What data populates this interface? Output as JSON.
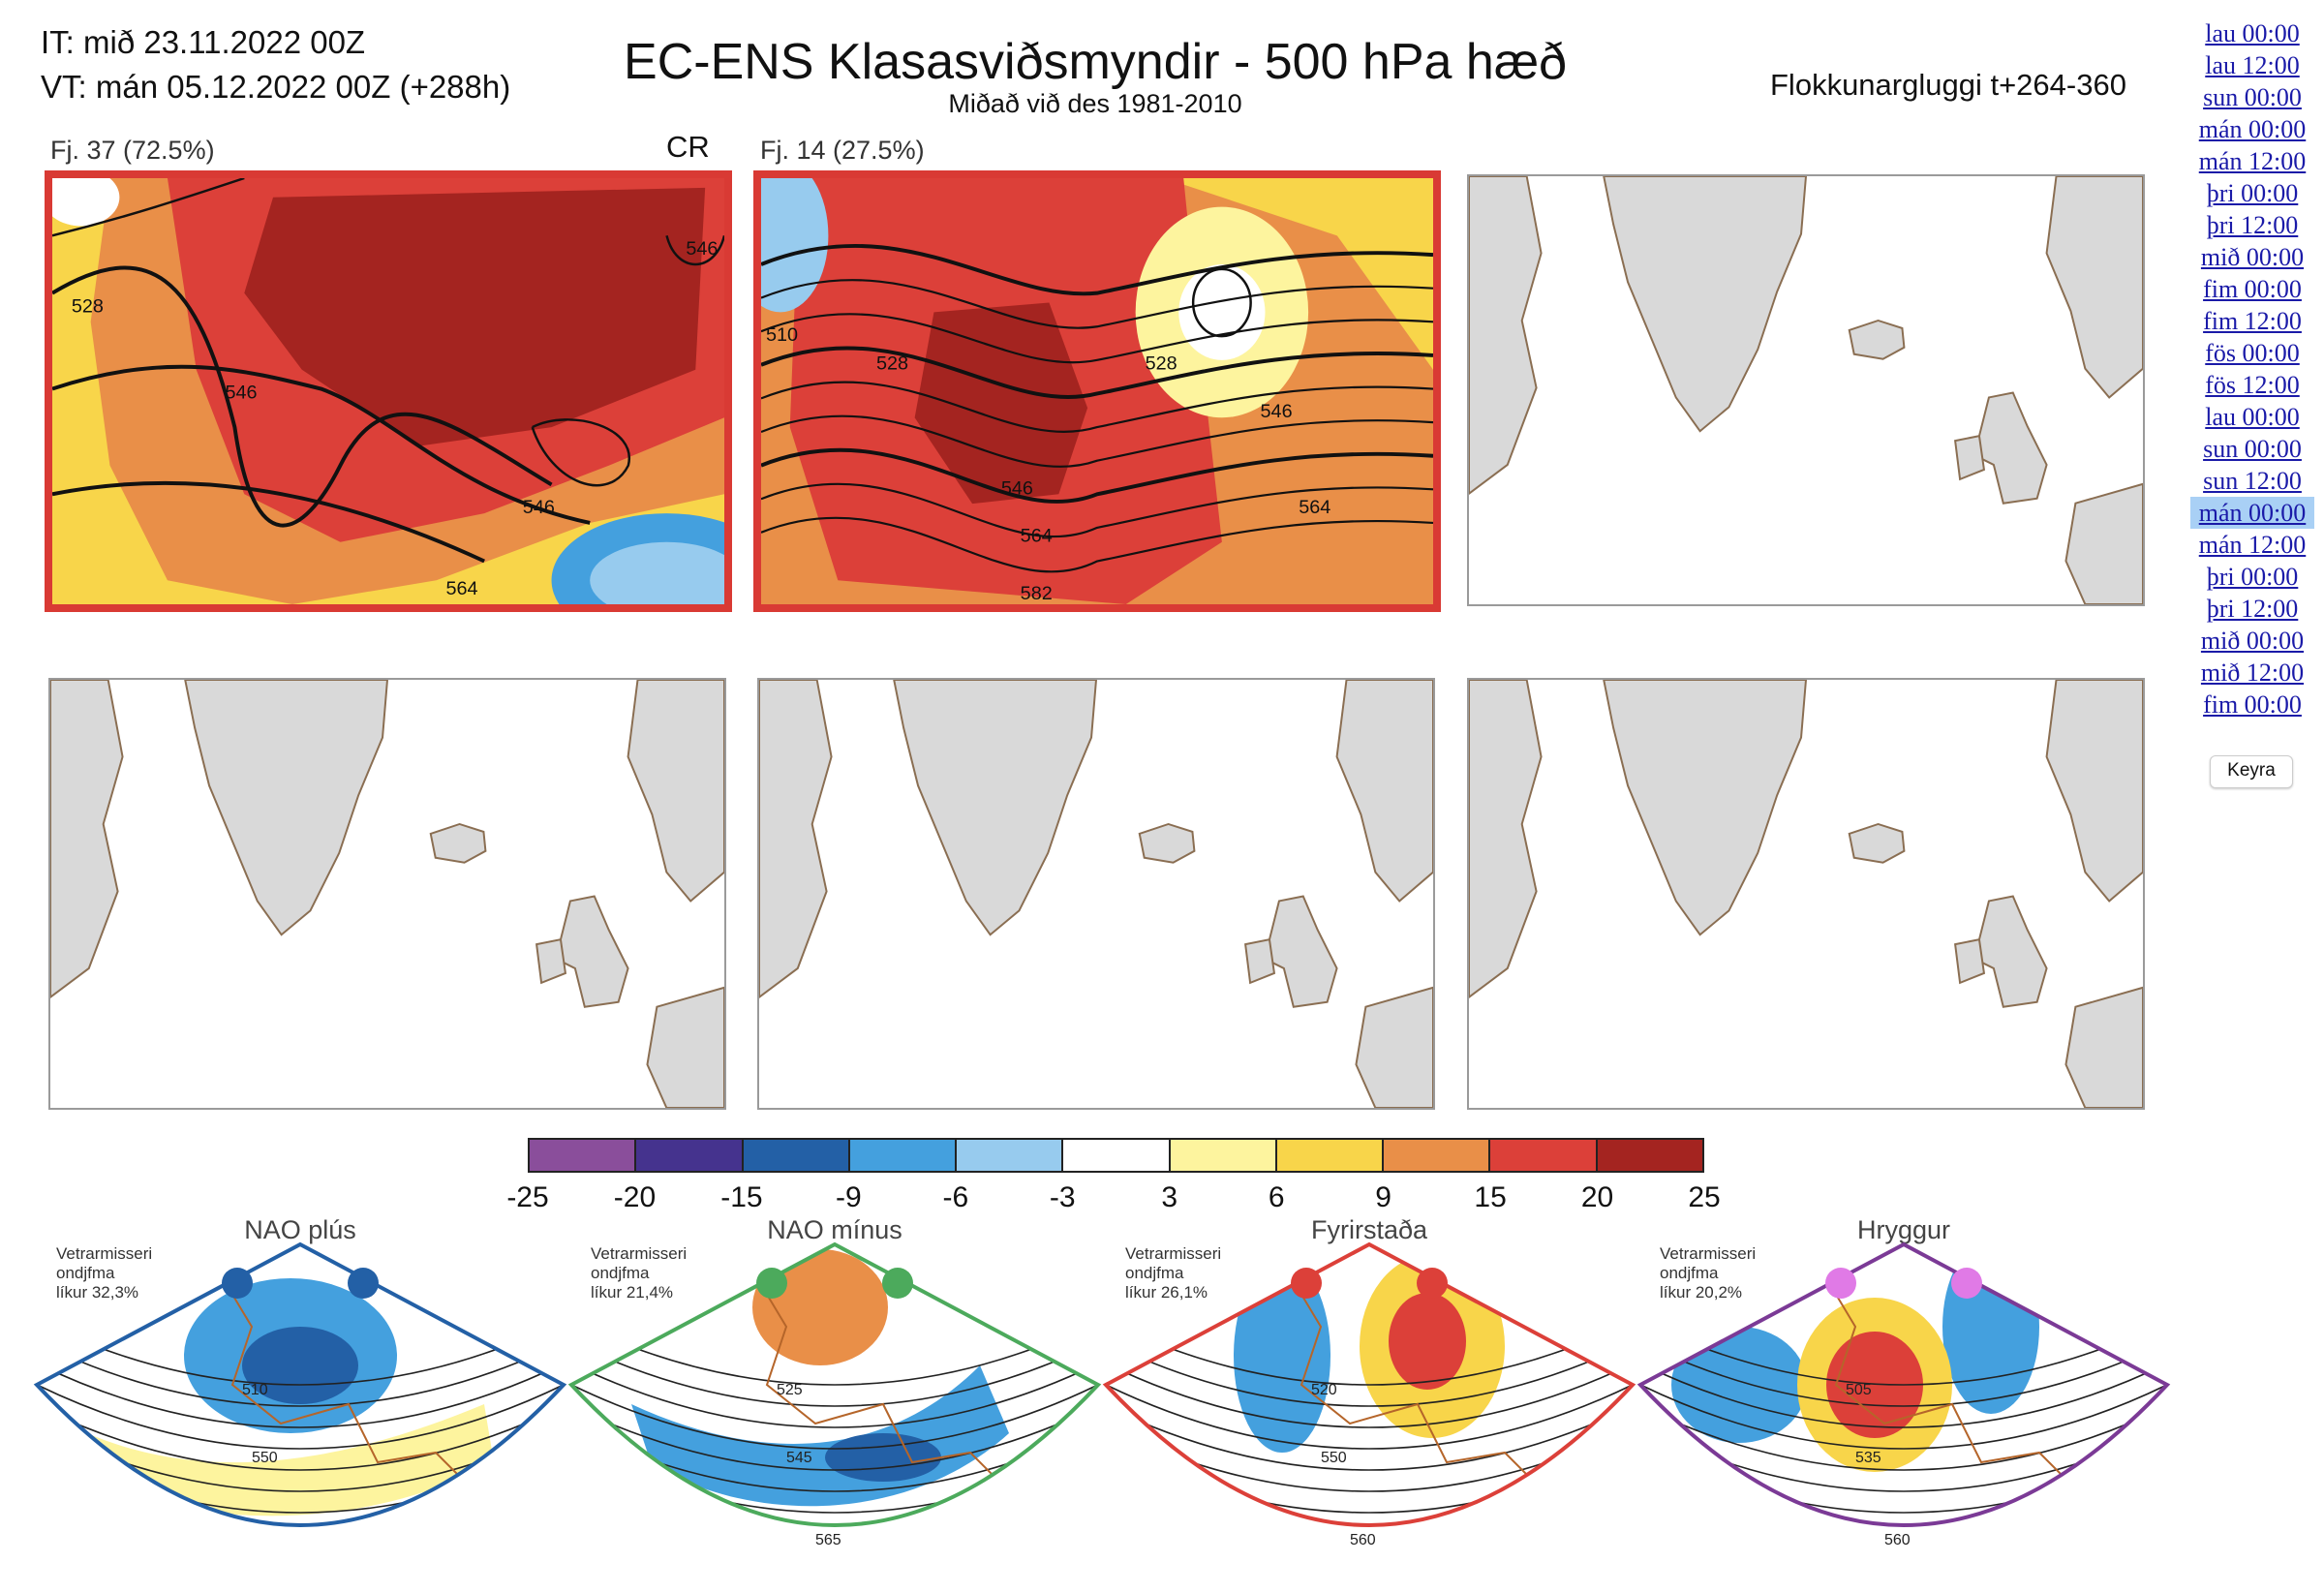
{
  "header": {
    "init_time": "IT: mið 23.11.2022 00Z",
    "valid_time": "VT: mán 05.12.2022 00Z  (+288h)",
    "title": "EC-ENS Klasasviðsmyndir - 500 hPa hæð",
    "subtitle": "Miðað við des 1981-2010",
    "window": "Flokkunargluggi t+264-360"
  },
  "clusters": [
    {
      "label": "Fj. 37 (72.5%)",
      "tag": "CR",
      "contour_labels": [
        "528",
        "546",
        "546",
        "546",
        "564"
      ]
    },
    {
      "label": "Fj. 14 (27.5%)",
      "contour_labels": [
        "510",
        "528",
        "528",
        "546",
        "546",
        "564",
        "564",
        "582"
      ]
    }
  ],
  "colorbar": {
    "ticks": [
      "-25",
      "-20",
      "-15",
      "-9",
      "-6",
      "-3",
      "3",
      "6",
      "9",
      "15",
      "20",
      "25"
    ],
    "colors": [
      "#8a4e9b",
      "#45338e",
      "#2360a6",
      "#44a0de",
      "#97cbee",
      "#ffffff",
      "#fdf49e",
      "#f8d54a",
      "#e98f48",
      "#dc4039",
      "#a42420"
    ]
  },
  "regimes": [
    {
      "title": "NAO plús",
      "note": [
        "Vetrarmisseri",
        "ondjfma",
        "líkur 32,3%"
      ],
      "color": "#2360a6",
      "dot": "#2360a6",
      "labels": [
        "510",
        "550"
      ]
    },
    {
      "title": "NAO mínus",
      "note": [
        "Vetrarmisseri",
        "ondjfma",
        "líkur 21,4%"
      ],
      "color": "#4caa5c",
      "dot": "#4caa5c",
      "labels": [
        "525",
        "545",
        "565"
      ]
    },
    {
      "title": "Fyrirstaða",
      "note": [
        "Vetrarmisseri",
        "ondjfma",
        "líkur 26,1%"
      ],
      "color": "#dc4039",
      "dot": "#dc4039",
      "labels": [
        "520",
        "550",
        "560"
      ]
    },
    {
      "title": "Hryggur",
      "note": [
        "Vetrarmisseri",
        "ondjfma",
        "líkur 20,2%"
      ],
      "color": "#7b3a96",
      "dot": "#e07ae6",
      "labels": [
        "505",
        "535",
        "560"
      ]
    }
  ],
  "sidebar": {
    "times": [
      "lau 00:00",
      "lau 12:00",
      "sun 00:00",
      "mán 00:00",
      "mán 12:00",
      "þri 00:00",
      "þri 12:00",
      "mið 00:00",
      "fim 00:00",
      "fim 12:00",
      "fös 00:00",
      "fös 12:00",
      "lau 00:00",
      "sun 00:00",
      "sun 12:00",
      "mán 00:00",
      "mán 12:00",
      "þri 00:00",
      "þri 12:00",
      "mið 00:00",
      "mið 12:00",
      "fim 00:00"
    ],
    "selected_index": 15,
    "run_button": "Keyra"
  }
}
